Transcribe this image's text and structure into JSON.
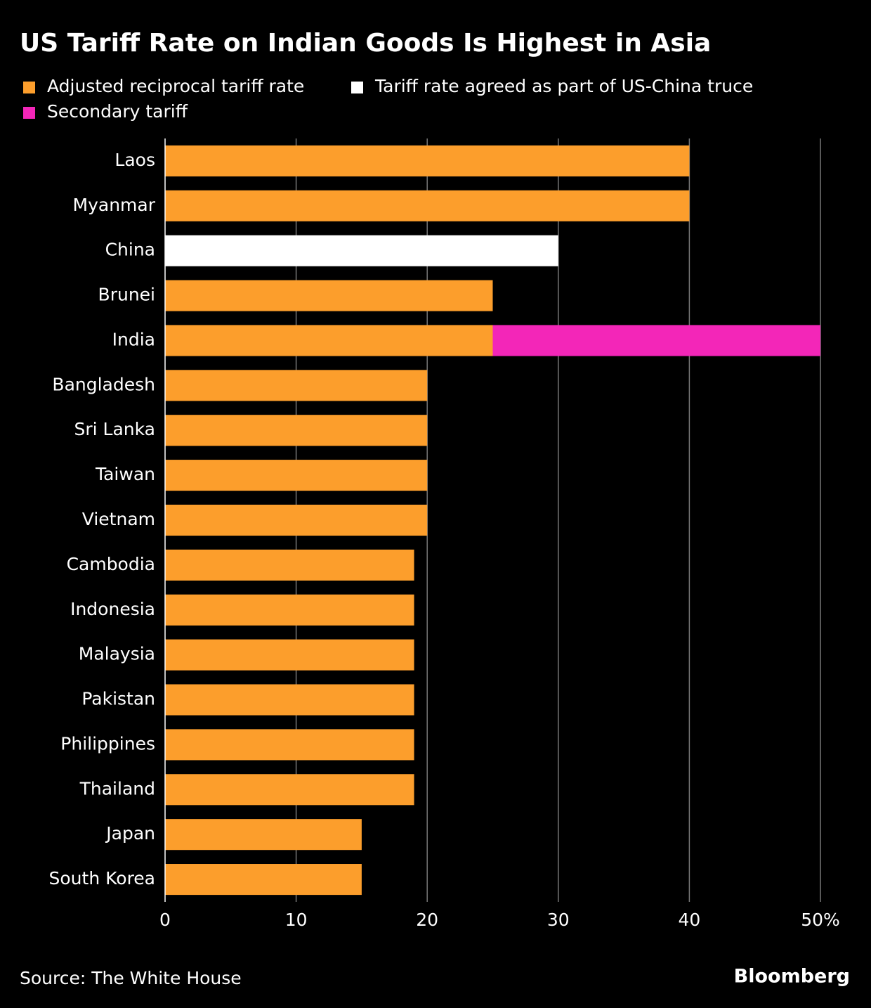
{
  "chart_data": {
    "type": "stacked-bar-horizontal",
    "title": "US Tariff Rate on Indian Goods Is Highest in Asia",
    "source": "Source: The White House",
    "brand": "Bloomberg",
    "categories": [
      "Laos",
      "Myanmar",
      "China",
      "Brunei",
      "India",
      "Bangladesh",
      "Sri Lanka",
      "Taiwan",
      "Vietnam",
      "Cambodia",
      "Indonesia",
      "Malaysia",
      "Pakistan",
      "Philippines",
      "Thailand",
      "Japan",
      "South Korea"
    ],
    "series": [
      {
        "name": "Adjusted reciprocal tariff rate",
        "color": "#fc9e2c",
        "values": [
          40,
          40,
          null,
          25,
          25,
          20,
          20,
          20,
          20,
          19,
          19,
          19,
          19,
          19,
          19,
          15,
          15
        ]
      },
      {
        "name": "Tariff rate agreed as part of US-China truce",
        "color": "#ffffff",
        "values": [
          null,
          null,
          30,
          null,
          null,
          null,
          null,
          null,
          null,
          null,
          null,
          null,
          null,
          null,
          null,
          null,
          null
        ]
      },
      {
        "name": "Secondary tariff",
        "color": "#f326b8",
        "values": [
          null,
          null,
          null,
          null,
          25,
          null,
          null,
          null,
          null,
          null,
          null,
          null,
          null,
          null,
          null,
          null,
          null
        ]
      }
    ],
    "xlim": [
      0,
      50
    ],
    "xticks": [
      0,
      10,
      20,
      30,
      40,
      {
        "value": 50,
        "label": "50%"
      }
    ],
    "grid": true
  }
}
